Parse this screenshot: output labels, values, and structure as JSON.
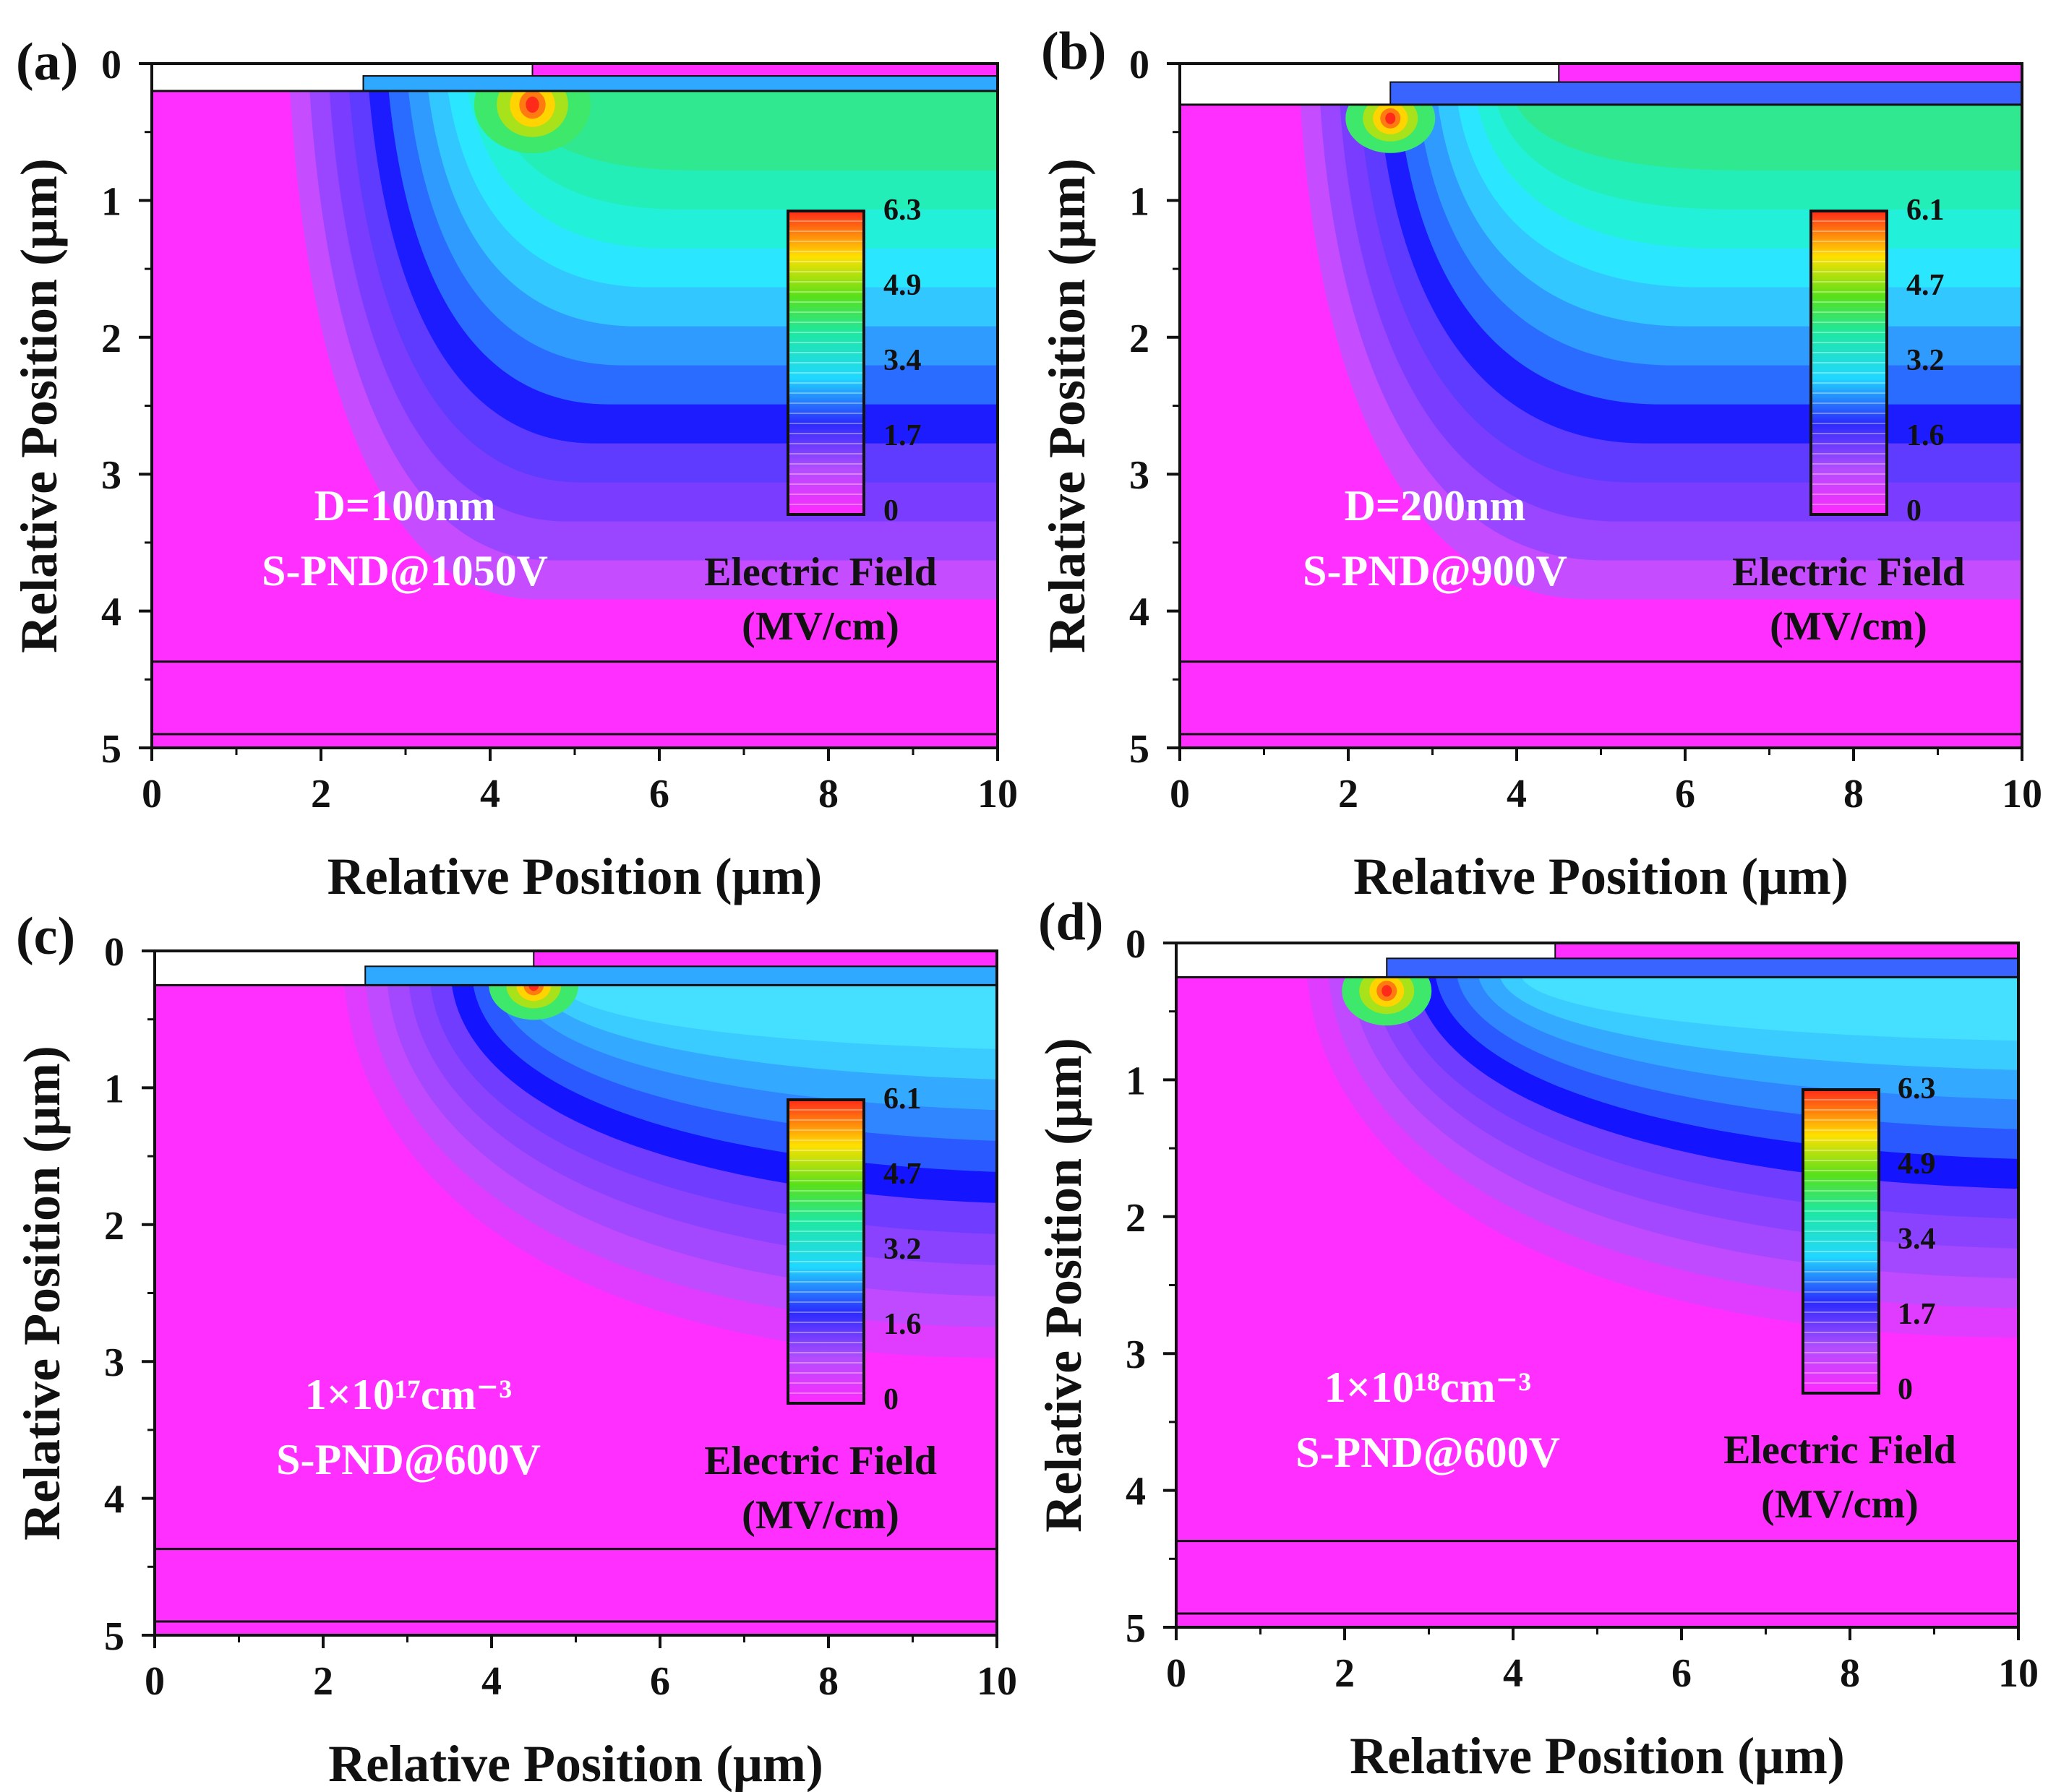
{
  "figure": {
    "panels": [
      {
        "label": "(a)",
        "x_axis": {
          "title": "Relative Position (μm)",
          "ticks": [
            "0",
            "2",
            "4",
            "6",
            "8",
            "10"
          ]
        },
        "y_axis": {
          "title": "Relative Position (μm)",
          "ticks": [
            "0",
            "1",
            "2",
            "3",
            "4",
            "5"
          ]
        },
        "annotation": {
          "line1": "D=100nm",
          "line2": "S-PND@1050V"
        },
        "colorbar": {
          "ticks": [
            "6.3",
            "4.9",
            "3.4",
            "1.7",
            "0"
          ],
          "title_line1": "Electric  Field",
          "title_line2": "(MV/cm)"
        }
      },
      {
        "label": "(b)",
        "x_axis": {
          "title": "Relative Position (μm)",
          "ticks": [
            "0",
            "2",
            "4",
            "6",
            "8",
            "10"
          ]
        },
        "y_axis": {
          "title": "Relative Position (μm)",
          "ticks": [
            "0",
            "1",
            "2",
            "3",
            "4",
            "5"
          ]
        },
        "annotation": {
          "line1": "D=200nm",
          "line2": "S-PND@900V"
        },
        "colorbar": {
          "ticks": [
            "6.1",
            "4.7",
            "3.2",
            "1.6",
            "0"
          ],
          "title_line1": "Electric  Field",
          "title_line2": "(MV/cm)"
        }
      },
      {
        "label": "(c)",
        "x_axis": {
          "title": "Relative Position (μm)",
          "ticks": [
            "0",
            "2",
            "4",
            "6",
            "8",
            "10"
          ]
        },
        "y_axis": {
          "title": "Relative Position (μm)",
          "ticks": [
            "0",
            "1",
            "2",
            "3",
            "4",
            "5"
          ]
        },
        "annotation": {
          "line1": "1×10¹⁷cm⁻³",
          "line2": "S-PND@600V"
        },
        "colorbar": {
          "ticks": [
            "6.1",
            "4.7",
            "3.2",
            "1.6",
            "0"
          ],
          "title_line1": "Electric  Field",
          "title_line2": "(MV/cm)"
        }
      },
      {
        "label": "(d)",
        "x_axis": {
          "title": "Relative Position (μm)",
          "ticks": [
            "0",
            "2",
            "4",
            "6",
            "8",
            "10"
          ]
        },
        "y_axis": {
          "title": "Relative Position (μm)",
          "ticks": [
            "0",
            "1",
            "2",
            "3",
            "4",
            "5"
          ]
        },
        "annotation": {
          "line1": "1×10¹⁸cm⁻³",
          "line2": "S-PND@600V"
        },
        "colorbar": {
          "ticks": [
            "6.3",
            "4.9",
            "3.4",
            "1.7",
            "0"
          ],
          "title_line1": "Electric  Field",
          "title_line2": "(MV/cm)"
        }
      }
    ]
  },
  "chart_data": [
    {
      "type": "heatmap",
      "panel": "(a)",
      "quantity": "Electric Field (MV/cm)",
      "xlabel": "Relative Position (μm)",
      "ylabel": "Relative Position (μm)",
      "xlim": [
        0,
        10
      ],
      "ylim": [
        5,
        0
      ],
      "colorbar_range": [
        0,
        6.3
      ],
      "annotation": [
        "D=100nm",
        "S-PND@1050V"
      ],
      "peak_field_location_um": [
        4.5,
        0.3
      ],
      "structure": {
        "trench_depth_um": 0.2,
        "step_x_um": 2.5,
        "top_metal_start_um": 4.5,
        "interface_lines_um": [
          4.37,
          4.9
        ]
      }
    },
    {
      "type": "heatmap",
      "panel": "(b)",
      "quantity": "Electric Field (MV/cm)",
      "xlabel": "Relative Position (μm)",
      "ylabel": "Relative Position (μm)",
      "xlim": [
        0,
        10
      ],
      "ylim": [
        5,
        0
      ],
      "colorbar_range": [
        0,
        6.1
      ],
      "annotation": [
        "D=200nm",
        "S-PND@900V"
      ],
      "peak_field_location_um": [
        2.5,
        0.4
      ],
      "structure": {
        "trench_depth_um": 0.3,
        "step_x_um": 2.5,
        "top_metal_start_um": 4.5,
        "interface_lines_um": [
          4.37,
          4.9
        ]
      }
    },
    {
      "type": "heatmap",
      "panel": "(c)",
      "quantity": "Electric Field (MV/cm)",
      "xlabel": "Relative Position (μm)",
      "ylabel": "Relative Position (μm)",
      "xlim": [
        0,
        10
      ],
      "ylim": [
        5,
        0
      ],
      "colorbar_range": [
        0,
        6.1
      ],
      "annotation": [
        "1×10¹⁷cm⁻³",
        "S-PND@600V"
      ],
      "peak_field_location_um": [
        4.5,
        0.25
      ],
      "structure": {
        "trench_depth_um": 0.25,
        "step_x_um": 2.5,
        "top_metal_start_um": 4.5,
        "interface_lines_um": [
          4.37,
          4.9
        ]
      }
    },
    {
      "type": "heatmap",
      "panel": "(d)",
      "quantity": "Electric Field (MV/cm)",
      "xlabel": "Relative Position (μm)",
      "ylabel": "Relative Position (μm)",
      "xlim": [
        0,
        10
      ],
      "ylim": [
        5,
        0
      ],
      "colorbar_range": [
        0,
        6.3
      ],
      "annotation": [
        "1×10¹⁸cm⁻³",
        "S-PND@600V"
      ],
      "peak_field_location_um": [
        2.5,
        0.35
      ],
      "structure": {
        "trench_depth_um": 0.25,
        "step_x_um": 2.5,
        "top_metal_start_um": 4.5,
        "interface_lines_um": [
          4.37,
          4.9
        ]
      }
    }
  ]
}
